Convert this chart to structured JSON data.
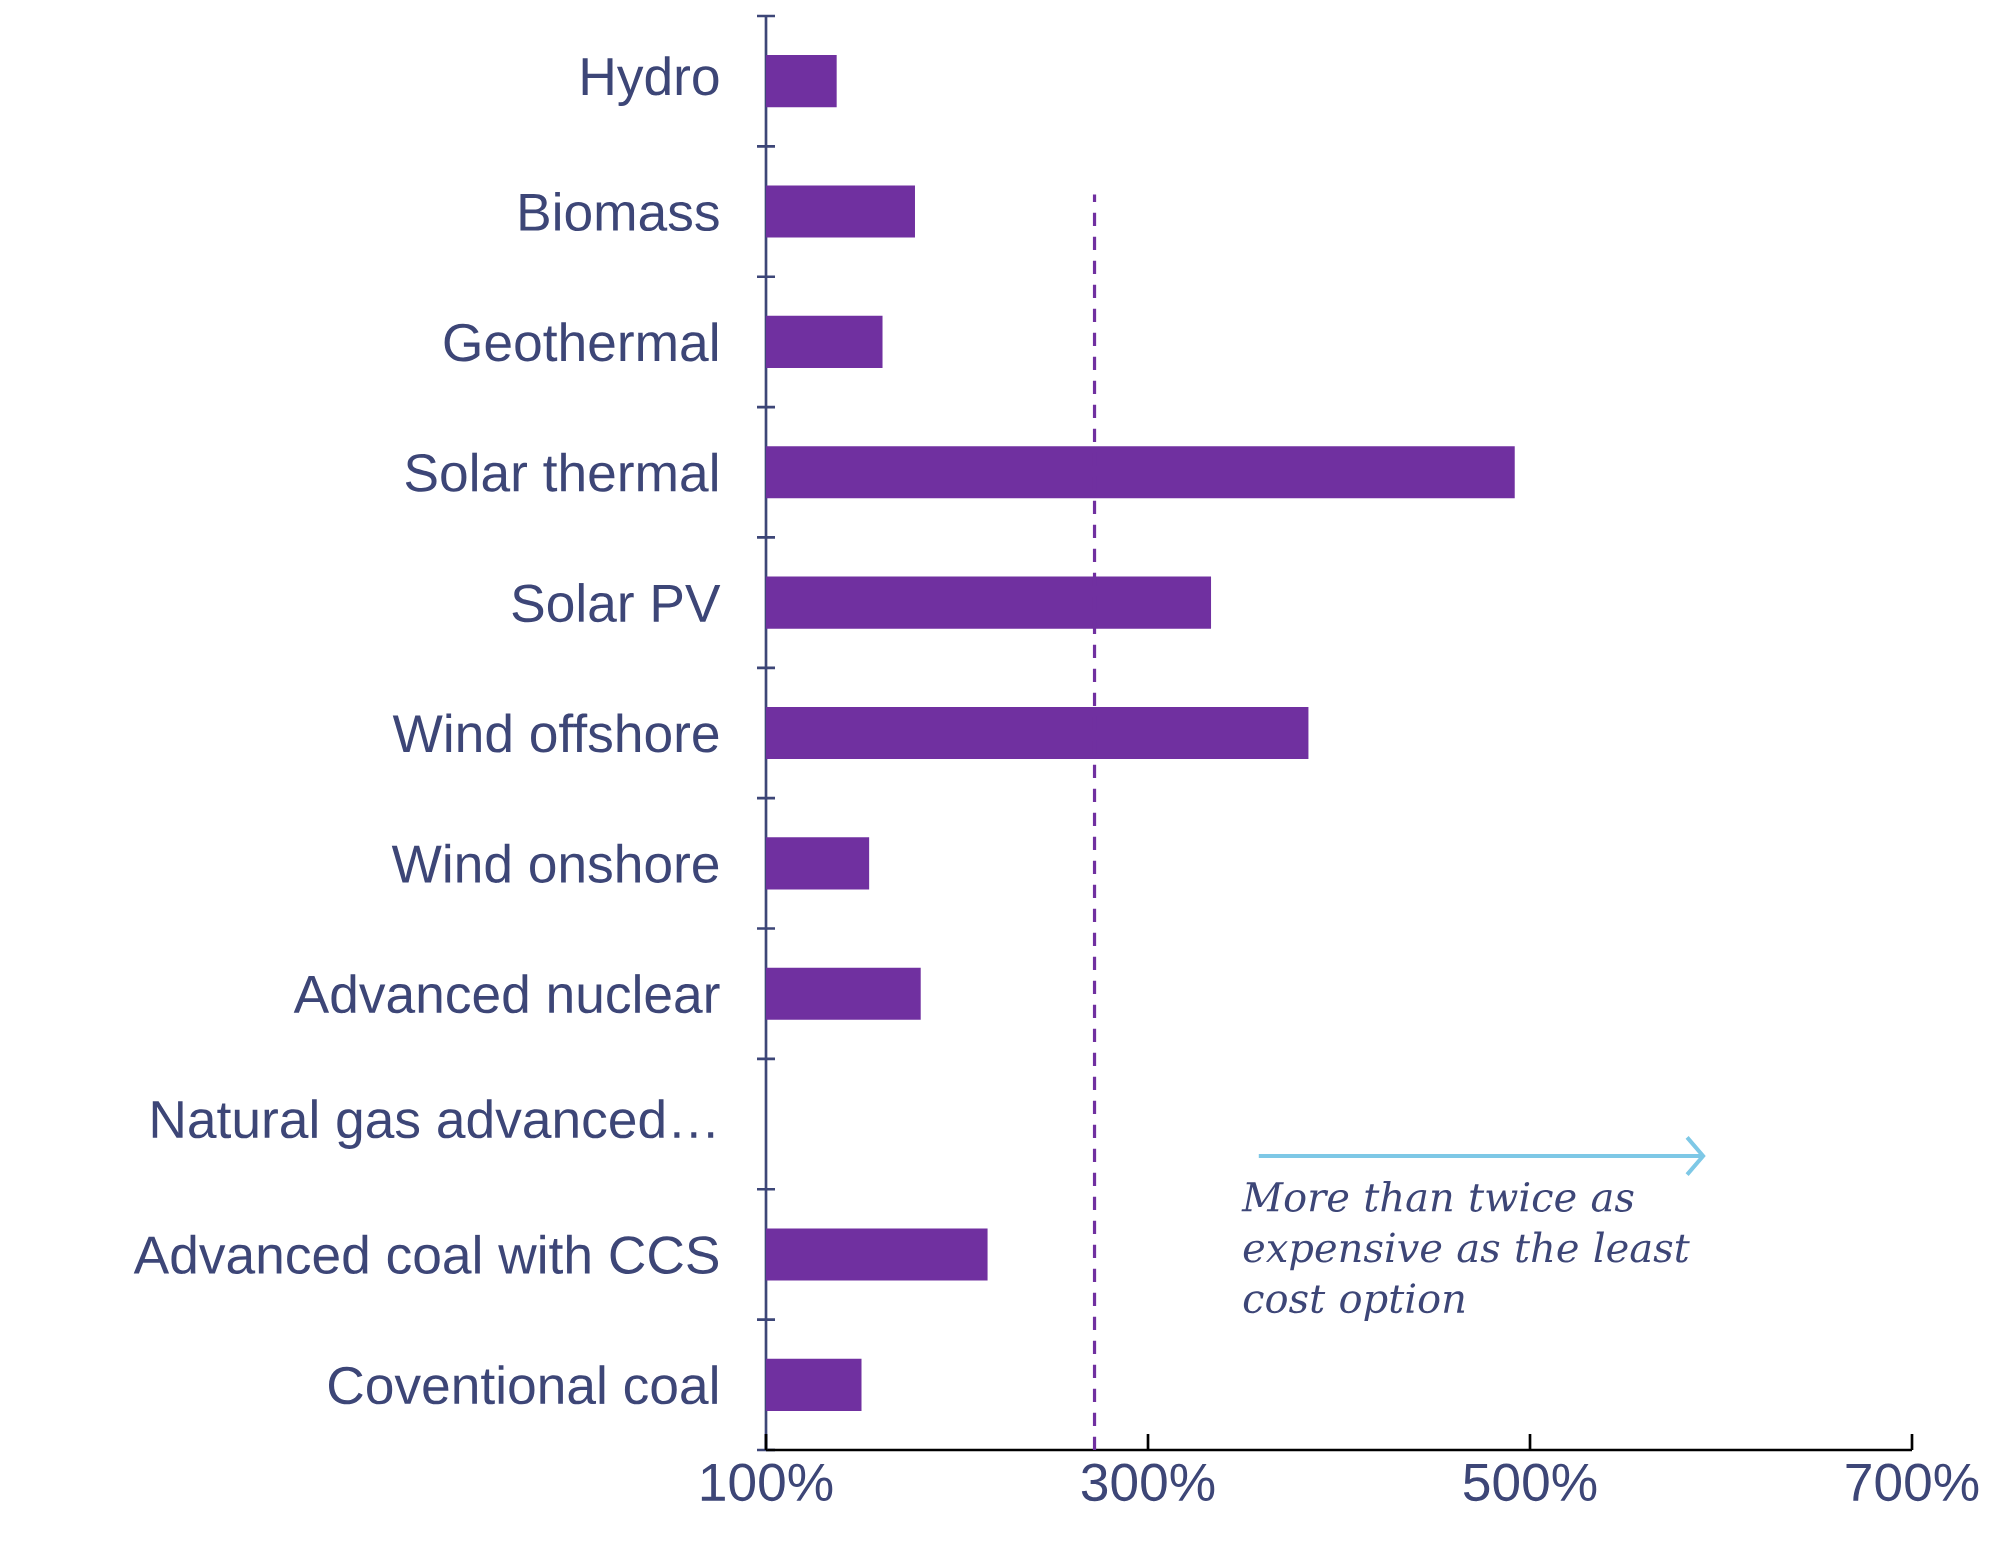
{
  "chart_data": {
    "type": "bar",
    "orientation": "horizontal",
    "categories": [
      "Hydro",
      "Biomass",
      "Geothermal",
      "Solar thermal",
      "Solar PV",
      "Wind offshore",
      "Wind onshore",
      "Advanced nuclear",
      "Natural gas advanced…",
      "Advanced coal with CCS",
      "Coventional coal"
    ],
    "values": [
      137,
      178,
      161,
      492,
      333,
      384,
      154,
      181,
      100,
      216,
      150
    ],
    "color": "#7030a0",
    "xlim": [
      100,
      700
    ],
    "xticks": [
      {
        "value": 100,
        "label": "100%"
      },
      {
        "value": 300,
        "label": "300%"
      },
      {
        "value": 500,
        "label": "500%"
      },
      {
        "value": 700,
        "label": "700%"
      }
    ],
    "ref_lines": [
      {
        "axis": "x",
        "value": 272,
        "color": "#7030a0",
        "line_style": "dashed"
      }
    ],
    "annotations": [
      "More than twice as expensive as the least cost option"
    ],
    "grid": false
  }
}
